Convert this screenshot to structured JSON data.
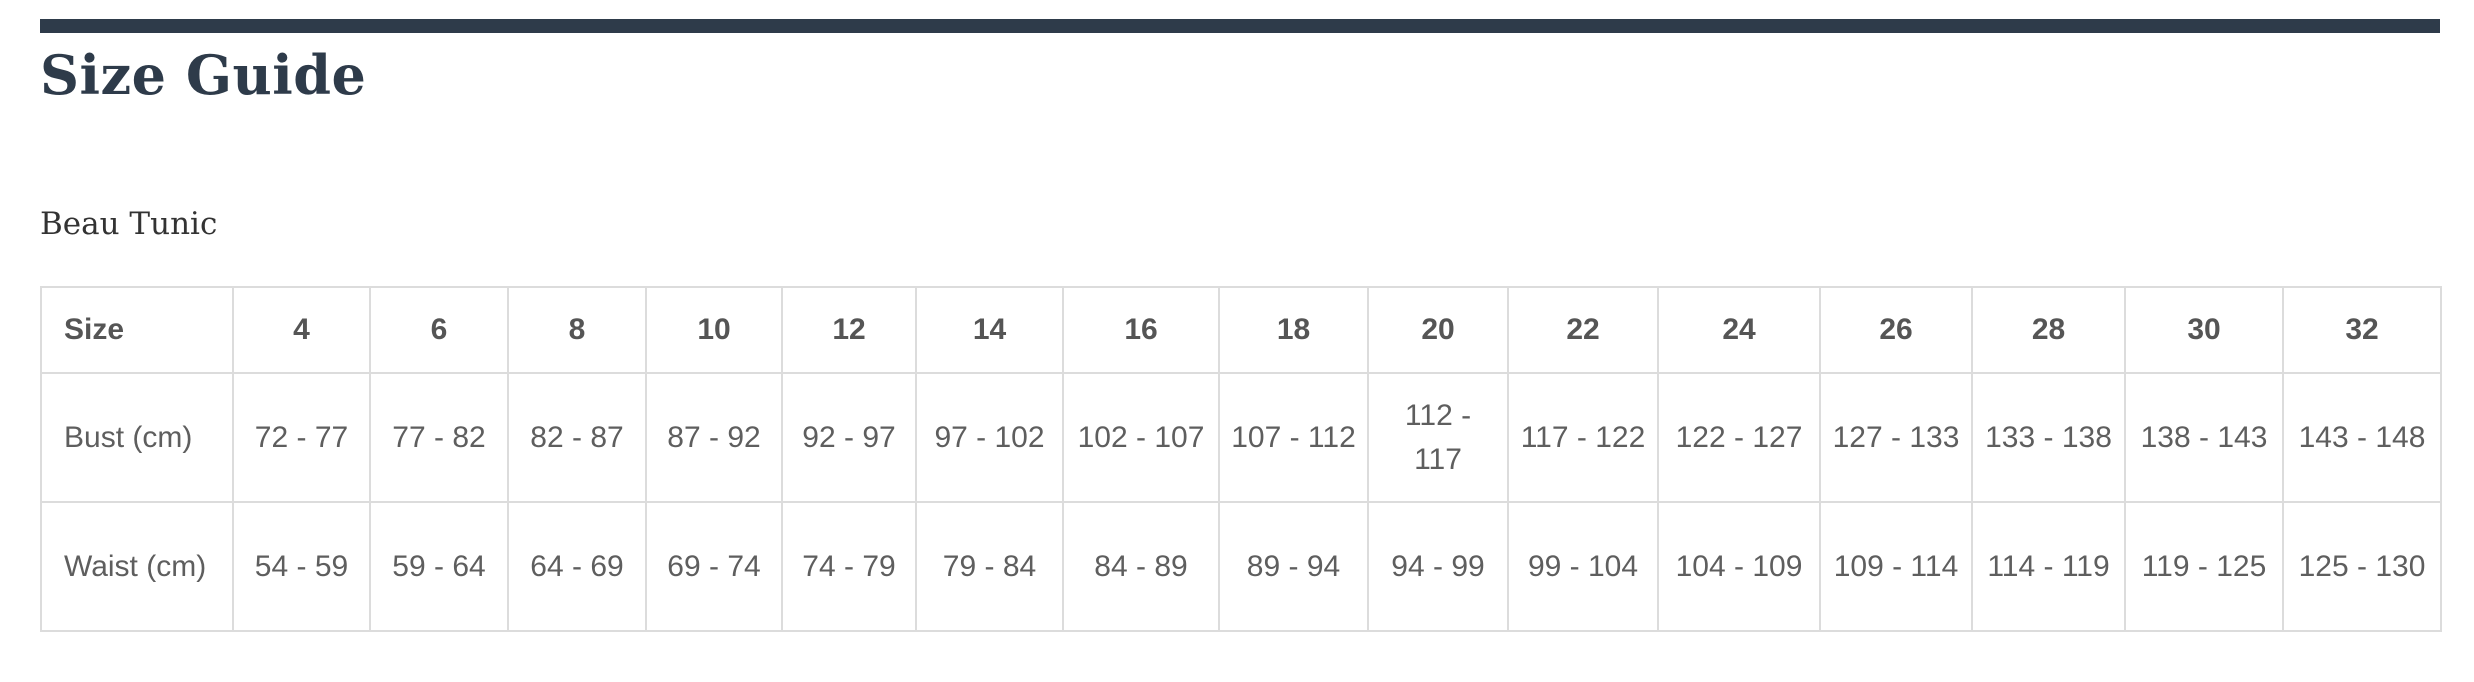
{
  "page_title": "Size Guide",
  "product_name": "Beau Tunic",
  "colors": {
    "accent_bar": "#2e3b4a",
    "title": "#2e3b4a",
    "border": "#dcdcdc",
    "text": "#5e5e5e"
  },
  "table": {
    "header_label": "Size",
    "sizes": [
      "4",
      "6",
      "8",
      "10",
      "12",
      "14",
      "16",
      "18",
      "20",
      "22",
      "24",
      "26",
      "28",
      "30",
      "32"
    ],
    "rows": [
      {
        "label": "Bust (cm)",
        "values": [
          "72 - 77",
          "77 - 82",
          "82 - 87",
          "87 - 92",
          "92 - 97",
          "97 - 102",
          "102 - 107",
          "107 - 112",
          "112 - 117",
          "117 - 122",
          "122 - 127",
          "127 - 133",
          "133 - 138",
          "138 - 143",
          "143 - 148"
        ]
      },
      {
        "label": "Waist (cm)",
        "values": [
          "54 - 59",
          "59 - 64",
          "64 - 69",
          "69 - 74",
          "74 - 79",
          "79 - 84",
          "84 - 89",
          "89 - 94",
          "94 - 99",
          "99 - 104",
          "104 - 109",
          "109 - 114",
          "114 - 119",
          "119 - 125",
          "125 - 130"
        ]
      }
    ]
  }
}
